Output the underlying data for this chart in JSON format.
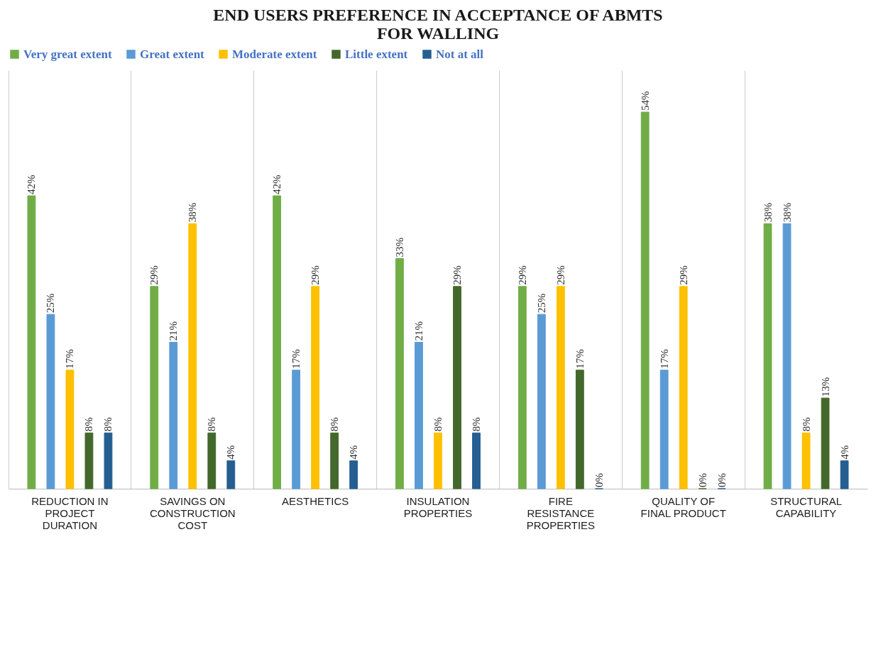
{
  "chart_data": {
    "type": "bar",
    "title": "END USERS PREFERENCE IN ACCEPTANCE OF ABMTS FOR WALLING",
    "categories": [
      "REDUCTION IN PROJECT DURATION",
      "SAVINGS ON CONSTRUCTION COST",
      "AESTHETICS",
      "INSULATION PROPERTIES",
      "FIRE RESISTANCE PROPERTIES",
      "QUALITY OF FINAL PRODUCT",
      "STRUCTURAL CAPABILITY"
    ],
    "series": [
      {
        "name": "Very great extent",
        "color": "#70ad47",
        "values": [
          42,
          29,
          42,
          33,
          29,
          54,
          38
        ],
        "value_labels": [
          "42%",
          "29%",
          "42%",
          "33%",
          "29%",
          "54%",
          "38%"
        ]
      },
      {
        "name": "Great extent",
        "color": "#5b9bd5",
        "values": [
          25,
          21,
          17,
          21,
          25,
          17,
          38
        ],
        "value_labels": [
          "25%",
          "21%",
          "17%",
          "21%",
          "25%",
          "17%",
          "38%"
        ]
      },
      {
        "name": "Moderate extent",
        "color": "#ffc000",
        "values": [
          17,
          38,
          29,
          8,
          29,
          29,
          8
        ],
        "value_labels": [
          "17%",
          "38%",
          "29%",
          "8%",
          "29%",
          "29%",
          "8%"
        ]
      },
      {
        "name": "Little extent",
        "color": "#43682b",
        "values": [
          8,
          8,
          8,
          29,
          17,
          0,
          13
        ],
        "value_labels": [
          "8%",
          "8%",
          "8%",
          "29%",
          "17%",
          "0%",
          "13%"
        ]
      },
      {
        "name": "Not at all",
        "color": "#255e91",
        "values": [
          8,
          4,
          4,
          8,
          0,
          0,
          4
        ],
        "value_labels": [
          "8%",
          "4%",
          "4%",
          "8%",
          "0%",
          "0%",
          "4%"
        ]
      }
    ],
    "ylim": [
      0,
      60
    ],
    "grid": "x",
    "legend": "top"
  }
}
